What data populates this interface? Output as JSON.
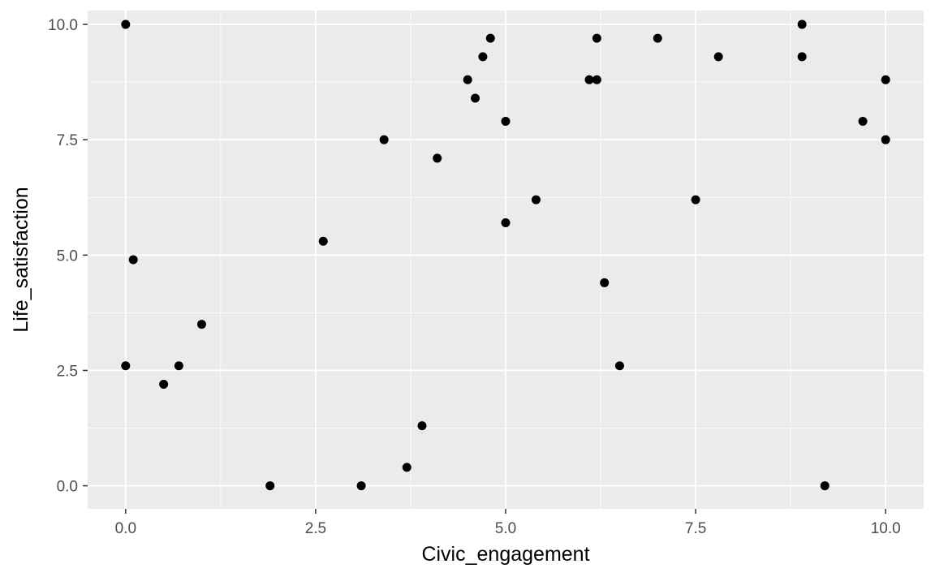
{
  "chart_data": {
    "type": "scatter",
    "title": "",
    "xlabel": "Civic_engagement",
    "ylabel": "Life_satisfaction",
    "xlim": [
      -0.5,
      10.5
    ],
    "ylim": [
      -0.5,
      10.3
    ],
    "x_ticks": [
      0,
      2.5,
      5,
      7.5,
      10
    ],
    "y_ticks": [
      0,
      2.5,
      5,
      7.5,
      10
    ],
    "x_tick_labels": [
      "0.0",
      "2.5",
      "5.0",
      "7.5",
      "10.0"
    ],
    "y_tick_labels": [
      "0.0",
      "2.5",
      "5.0",
      "7.5",
      "10.0"
    ],
    "grid": true,
    "colors": {
      "panel": "#ebebeb",
      "grid": "#ffffff",
      "point": "#000000"
    },
    "points": [
      {
        "x": 0.0,
        "y": 10.0
      },
      {
        "x": 0.1,
        "y": 4.9
      },
      {
        "x": 0.0,
        "y": 2.6
      },
      {
        "x": 0.5,
        "y": 2.2
      },
      {
        "x": 0.7,
        "y": 2.6
      },
      {
        "x": 1.0,
        "y": 3.5
      },
      {
        "x": 1.9,
        "y": 0.0
      },
      {
        "x": 2.6,
        "y": 5.3
      },
      {
        "x": 3.1,
        "y": 0.0
      },
      {
        "x": 3.4,
        "y": 7.5
      },
      {
        "x": 3.7,
        "y": 0.4
      },
      {
        "x": 3.9,
        "y": 1.3
      },
      {
        "x": 4.1,
        "y": 7.1
      },
      {
        "x": 4.5,
        "y": 8.8
      },
      {
        "x": 4.6,
        "y": 8.4
      },
      {
        "x": 4.7,
        "y": 9.3
      },
      {
        "x": 4.8,
        "y": 9.7
      },
      {
        "x": 5.0,
        "y": 7.9
      },
      {
        "x": 5.0,
        "y": 5.7
      },
      {
        "x": 5.4,
        "y": 6.2
      },
      {
        "x": 6.1,
        "y": 8.8
      },
      {
        "x": 6.2,
        "y": 8.8
      },
      {
        "x": 6.2,
        "y": 9.7
      },
      {
        "x": 6.3,
        "y": 4.4
      },
      {
        "x": 6.5,
        "y": 2.6
      },
      {
        "x": 7.0,
        "y": 9.7
      },
      {
        "x": 7.5,
        "y": 6.2
      },
      {
        "x": 7.8,
        "y": 9.3
      },
      {
        "x": 8.9,
        "y": 10.0
      },
      {
        "x": 8.9,
        "y": 9.3
      },
      {
        "x": 9.2,
        "y": 0.0
      },
      {
        "x": 9.7,
        "y": 7.9
      },
      {
        "x": 10.0,
        "y": 8.8
      },
      {
        "x": 10.0,
        "y": 7.5
      }
    ]
  }
}
